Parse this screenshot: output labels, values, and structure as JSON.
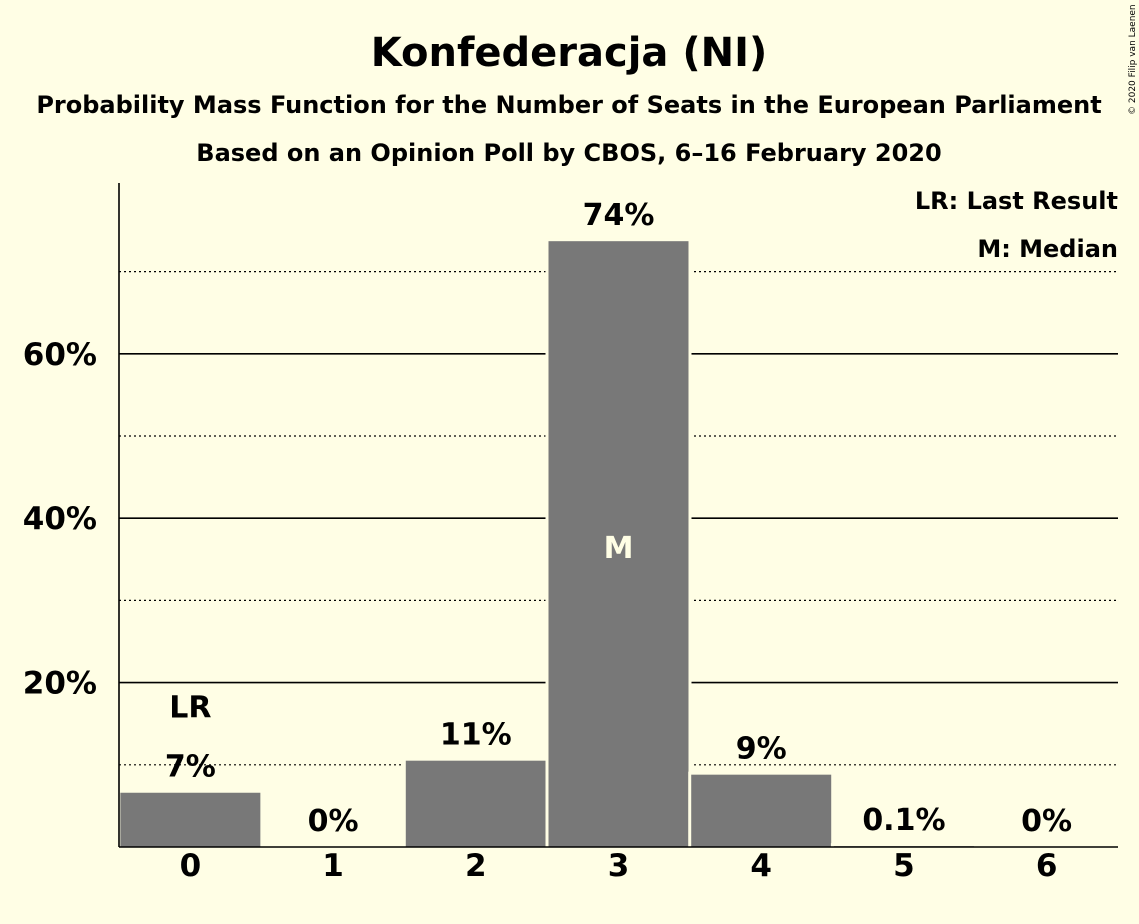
{
  "chart_data": {
    "type": "bar",
    "title": "Konfederacja (NI)",
    "subtitle": "Probability Mass Function for the Number of Seats in the European Parliament",
    "subtitle2": "Based on an Opinion Poll by CBOS, 6–16 February 2020",
    "categories": [
      "0",
      "1",
      "2",
      "3",
      "4",
      "5",
      "6"
    ],
    "values": [
      6.6,
      0,
      10.5,
      73.7,
      8.8,
      0.1,
      0
    ],
    "value_labels": [
      "7%",
      "0%",
      "11%",
      "74%",
      "9%",
      "0.1%",
      "0%"
    ],
    "y_ticks": [
      20,
      40,
      60
    ],
    "y_tick_labels": [
      "20%",
      "40%",
      "60%"
    ],
    "ylim": [
      0,
      80
    ],
    "bar_color": "#787878",
    "grid": "solid major lines every 20%, dotted minor lines at 10%, 30%, 50%, 70%",
    "last_result": {
      "category": "0",
      "label": "LR"
    },
    "median": {
      "category": "3",
      "label": "M"
    },
    "legend": [
      "LR: Last Result",
      "M: Median"
    ],
    "legend_position": "top-right",
    "copyright": "© 2020 Filip van Laenen"
  }
}
